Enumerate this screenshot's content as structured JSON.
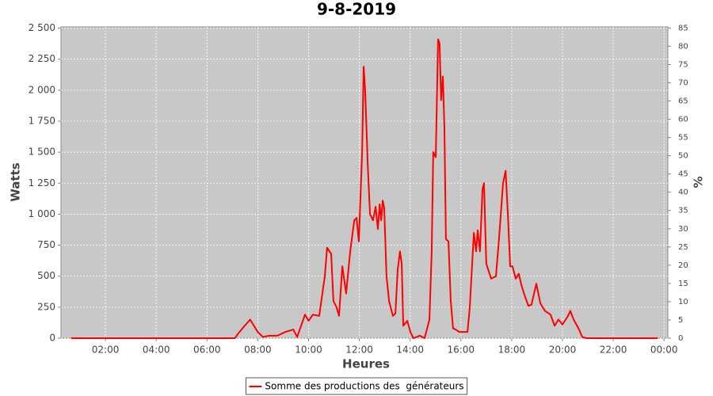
{
  "chart_data": {
    "type": "line",
    "title": "9-8-2019",
    "x_label": "Heures",
    "y_label": "Watts",
    "y2_label": "%",
    "x": [
      0.65,
      7.1,
      7.2,
      7.4,
      7.7,
      8.0,
      8.2,
      8.45,
      8.77,
      9.08,
      9.4,
      9.55,
      9.86,
      10.0,
      10.17,
      10.42,
      10.64,
      10.73,
      10.89,
      10.98,
      11.1,
      11.2,
      11.33,
      11.48,
      11.64,
      11.8,
      11.89,
      11.98,
      12.11,
      12.17,
      12.23,
      12.33,
      12.42,
      12.54,
      12.64,
      12.73,
      12.8,
      12.86,
      12.92,
      12.98,
      13.07,
      13.17,
      13.32,
      13.42,
      13.51,
      13.6,
      13.67,
      13.73,
      13.89,
      14.01,
      14.13,
      14.38,
      14.57,
      14.76,
      14.85,
      14.91,
      15.01,
      15.1,
      15.16,
      15.22,
      15.29,
      15.35,
      15.41,
      15.51,
      15.6,
      15.69,
      15.79,
      15.94,
      16.26,
      16.35,
      16.51,
      16.6,
      16.66,
      16.75,
      16.85,
      16.91,
      17.0,
      17.19,
      17.38,
      17.5,
      17.66,
      17.76,
      17.85,
      17.94,
      18.03,
      18.16,
      18.28,
      18.38,
      18.5,
      18.66,
      18.78,
      18.97,
      19.13,
      19.31,
      19.53,
      19.69,
      19.84,
      20.0,
      20.19,
      20.31,
      20.44,
      20.63,
      20.78,
      20.94,
      23.75
    ],
    "series": [
      {
        "name": "Somme des productions des  générateurs",
        "color": "#ff0000",
        "values": [
          0,
          0,
          30,
          80,
          150,
          50,
          10,
          20,
          20,
          50,
          70,
          10,
          190,
          140,
          190,
          180,
          500,
          730,
          680,
          300,
          250,
          180,
          580,
          360,
          700,
          950,
          970,
          780,
          1500,
          2190,
          2000,
          1400,
          1000,
          950,
          1060,
          880,
          1080,
          950,
          1110,
          1050,
          500,
          300,
          180,
          200,
          550,
          700,
          600,
          100,
          140,
          50,
          0,
          20,
          0,
          150,
          700,
          1500,
          1460,
          2410,
          2380,
          1920,
          2110,
          1700,
          800,
          780,
          300,
          80,
          70,
          50,
          50,
          250,
          850,
          700,
          870,
          700,
          1200,
          1250,
          600,
          480,
          500,
          800,
          1250,
          1350,
          1000,
          580,
          580,
          480,
          520,
          430,
          350,
          260,
          270,
          440,
          280,
          220,
          190,
          100,
          150,
          110,
          170,
          220,
          150,
          80,
          10,
          0,
          0
        ]
      }
    ],
    "xlim": [
      0.25,
      24.15
    ],
    "xticks": [
      {
        "value": 2,
        "label": "02:00"
      },
      {
        "value": 4,
        "label": "04:00"
      },
      {
        "value": 6,
        "label": "06:00"
      },
      {
        "value": 8,
        "label": "08:00"
      },
      {
        "value": 10,
        "label": "10:00"
      },
      {
        "value": 12,
        "label": "12:00"
      },
      {
        "value": 14,
        "label": "14:00"
      },
      {
        "value": 16,
        "label": "16:00"
      },
      {
        "value": 18,
        "label": "18:00"
      },
      {
        "value": 20,
        "label": "20:00"
      },
      {
        "value": 22,
        "label": "22:00"
      },
      {
        "value": 24,
        "label": "00:00"
      }
    ],
    "ylim": [
      0,
      2510
    ],
    "yticks": [
      0,
      250,
      500,
      750,
      {
        "value": 1000,
        "label": "1 000"
      },
      {
        "value": 1250,
        "label": "1 250"
      },
      {
        "value": 1500,
        "label": "1 500"
      },
      {
        "value": 1750,
        "label": "1 750"
      },
      {
        "value": 2000,
        "label": "2 000"
      },
      {
        "value": 2250,
        "label": "2 250"
      },
      {
        "value": 2500,
        "label": "2 500"
      }
    ],
    "y2lim": [
      0,
      85.3
    ],
    "y2ticks": [
      0,
      5,
      10,
      15,
      20,
      25,
      30,
      35,
      40,
      45,
      50,
      55,
      60,
      65,
      70,
      75,
      80,
      85
    ],
    "grid": true,
    "legend": "bottom"
  }
}
